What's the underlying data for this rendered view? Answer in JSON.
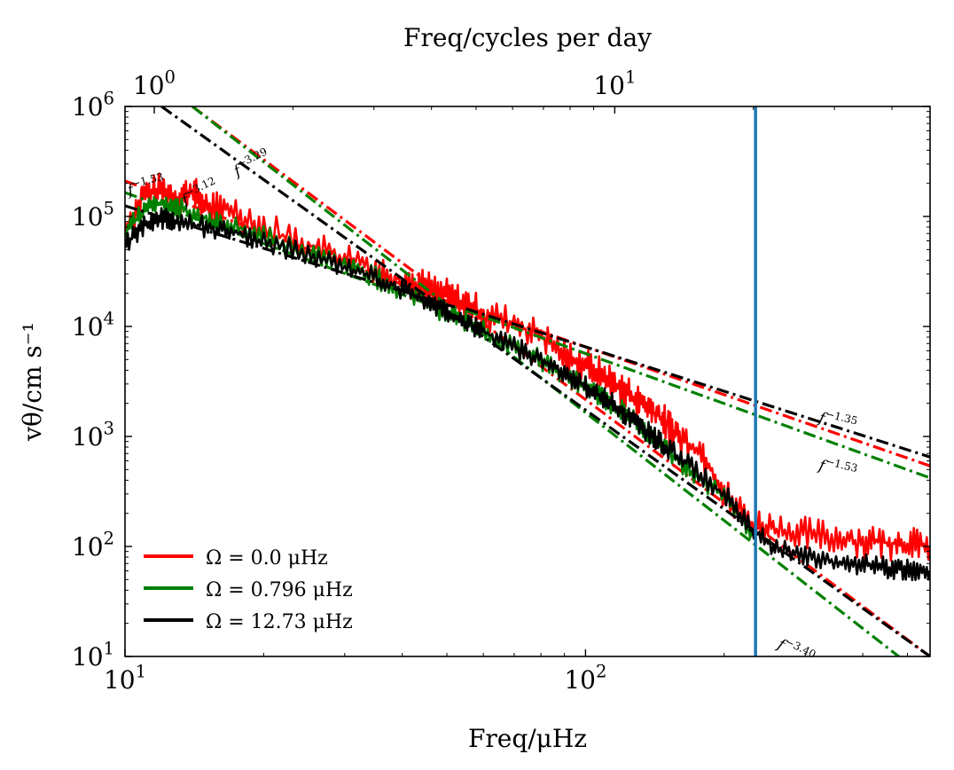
{
  "chart_data": {
    "type": "line",
    "scale": "log-log",
    "xlabel": "Freq/μHz",
    "ylabel": "vθ/cm s⁻¹",
    "top_xlabel": "Freq/cycles per day",
    "xlim": [
      10,
      560
    ],
    "ylim": [
      10,
      1000000
    ],
    "x_ticks": [
      {
        "value": 10,
        "base": "10",
        "exp": "1"
      },
      {
        "value": 100,
        "base": "10",
        "exp": "2"
      }
    ],
    "y_ticks": [
      {
        "value": 10,
        "base": "10",
        "exp": "1"
      },
      {
        "value": 100,
        "base": "10",
        "exp": "2"
      },
      {
        "value": 1000,
        "base": "10",
        "exp": "3"
      },
      {
        "value": 10000,
        "base": "10",
        "exp": "4"
      },
      {
        "value": 100000,
        "base": "10",
        "exp": "5"
      },
      {
        "value": 1000000,
        "base": "10",
        "exp": "6"
      }
    ],
    "top_ticks": [
      {
        "value_cpd": 1,
        "base": "10",
        "exp": "0"
      },
      {
        "value_cpd": 10,
        "base": "10",
        "exp": "1"
      }
    ],
    "vertical_line": {
      "x": 234,
      "color": "#1f77b4"
    },
    "series": [
      {
        "name": "Ω = 0.0 μHz",
        "legend": "Ω = 0.0 μHz",
        "color": "#ff0000",
        "points": [
          [
            10,
            75000
          ],
          [
            11,
            155000
          ],
          [
            12,
            175000
          ],
          [
            13,
            145000
          ],
          [
            14,
            170000
          ],
          [
            15,
            120000
          ],
          [
            17,
            115000
          ],
          [
            20,
            80000
          ],
          [
            25,
            55000
          ],
          [
            30,
            42000
          ],
          [
            35,
            33000
          ],
          [
            40,
            26000
          ],
          [
            45,
            23000
          ],
          [
            50,
            19000
          ],
          [
            55,
            16000
          ],
          [
            60,
            13000
          ],
          [
            70,
            10500
          ],
          [
            80,
            8000
          ],
          [
            90,
            5500
          ],
          [
            100,
            4500
          ],
          [
            110,
            3500
          ],
          [
            120,
            2700
          ],
          [
            130,
            2100
          ],
          [
            140,
            1700
          ],
          [
            150,
            1300
          ],
          [
            160,
            1000
          ],
          [
            180,
            700
          ],
          [
            200,
            300
          ],
          [
            230,
            160
          ],
          [
            260,
            145
          ],
          [
            300,
            130
          ],
          [
            350,
            120
          ],
          [
            400,
            112
          ],
          [
            450,
            108
          ],
          [
            500,
            105
          ],
          [
            560,
            100
          ]
        ],
        "fits": [
          {
            "exponent": "−1.53",
            "x": [
              10,
              52
            ],
            "y": [
              210000,
              16000
            ]
          },
          {
            "exponent": "−3.29",
            "x": [
              14,
              560
            ],
            "y": [
              1000000,
              10
            ]
          },
          {
            "exponent": "−1.35",
            "x": [
              55,
              560
            ],
            "y": [
              15500,
              540
            ]
          }
        ]
      },
      {
        "name": "Ω = 0.796 μHz",
        "legend": "Ω = 0.796 μHz",
        "color": "#008000",
        "points": [
          [
            10,
            70000
          ],
          [
            11,
            115000
          ],
          [
            12,
            135000
          ],
          [
            13,
            120000
          ],
          [
            15,
            95000
          ],
          [
            17,
            85000
          ],
          [
            20,
            65000
          ],
          [
            25,
            48000
          ],
          [
            30,
            36000
          ],
          [
            35,
            28000
          ],
          [
            40,
            21000
          ],
          [
            45,
            17000
          ],
          [
            50,
            13000
          ],
          [
            55,
            11000
          ],
          [
            60,
            9000
          ],
          [
            70,
            6500
          ],
          [
            80,
            5000
          ],
          [
            90,
            3700
          ],
          [
            100,
            2900
          ],
          [
            110,
            2200
          ],
          [
            120,
            1700
          ],
          [
            130,
            1300
          ],
          [
            140,
            980
          ],
          [
            150,
            750
          ],
          [
            170,
            480
          ],
          [
            200,
            280
          ],
          [
            230,
            140
          ]
        ],
        "fits": [
          {
            "exponent": "−1.53",
            "x": [
              10,
              52
            ],
            "y": [
              165000,
              13000
            ]
          },
          {
            "exponent": "−3.40",
            "x": [
              14,
              560
            ],
            "y": [
              1000000,
              6
            ]
          },
          {
            "exponent": "−1.53",
            "x": [
              55,
              560
            ],
            "y": [
              14000,
              420
            ]
          }
        ]
      },
      {
        "name": "Ω = 12.73 μHz",
        "legend": "Ω = 12.73 μHz",
        "color": "#000000",
        "points": [
          [
            10,
            55000
          ],
          [
            11,
            85000
          ],
          [
            12,
            95000
          ],
          [
            13,
            90000
          ],
          [
            15,
            80000
          ],
          [
            17,
            72000
          ],
          [
            20,
            60000
          ],
          [
            25,
            45000
          ],
          [
            30,
            35000
          ],
          [
            35,
            28000
          ],
          [
            40,
            22000
          ],
          [
            45,
            17000
          ],
          [
            50,
            13500
          ],
          [
            55,
            11000
          ],
          [
            60,
            9000
          ],
          [
            70,
            6500
          ],
          [
            80,
            5000
          ],
          [
            90,
            3800
          ],
          [
            100,
            2900
          ],
          [
            110,
            2200
          ],
          [
            120,
            1700
          ],
          [
            130,
            1300
          ],
          [
            140,
            1000
          ],
          [
            150,
            800
          ],
          [
            170,
            520
          ],
          [
            200,
            300
          ],
          [
            230,
            140
          ],
          [
            260,
            95
          ],
          [
            300,
            80
          ],
          [
            350,
            72
          ],
          [
            400,
            68
          ],
          [
            450,
            64
          ],
          [
            500,
            62
          ],
          [
            560,
            60
          ]
        ],
        "fits": [
          {
            "exponent": "−1.35",
            "x": [
              10,
              52
            ],
            "y": [
              125000,
              15000
            ]
          },
          {
            "exponent": "−3.12",
            "x": [
              12,
              560
            ],
            "y": [
              1000000,
              10
            ]
          },
          {
            "exponent": "−1.35",
            "x": [
              55,
              560
            ],
            "y": [
              14500,
              650
            ]
          }
        ]
      }
    ],
    "annotations": [
      {
        "base": "f",
        "exp": "−1.53",
        "x": 10.2,
        "y": 155000,
        "angle": -14
      },
      {
        "base": "f",
        "exp": "−3.12",
        "x": 13.5,
        "y": 125000,
        "angle": -26
      },
      {
        "base": "f",
        "exp": "−3.29",
        "x": 17.5,
        "y": 230000,
        "angle": -26
      },
      {
        "base": "f",
        "exp": "−1.35",
        "x": 320,
        "y": 1350,
        "angle": 14
      },
      {
        "base": "f",
        "exp": "−1.53",
        "x": 320,
        "y": 500,
        "angle": 14
      },
      {
        "base": "f",
        "exp": "−3.40",
        "x": 260,
        "y": 12,
        "angle": 26
      }
    ],
    "legend_position": "lower-left"
  }
}
